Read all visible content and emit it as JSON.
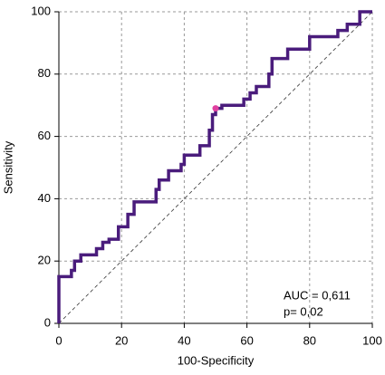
{
  "chart_data": {
    "type": "line",
    "xlabel": "100-Specificity",
    "ylabel": "Sensitivity",
    "xlim": [
      0,
      100
    ],
    "ylim": [
      0,
      100
    ],
    "xticks": [
      0,
      20,
      40,
      60,
      80,
      100
    ],
    "yticks": [
      0,
      20,
      40,
      60,
      80,
      100
    ],
    "grid": true,
    "series": [
      {
        "color": "#4a1c7c",
        "x": [
          0,
          0,
          4,
          4,
          5,
          5,
          7,
          7,
          12,
          12,
          14,
          14,
          16,
          16,
          19,
          19,
          22,
          22,
          24,
          24,
          31,
          31,
          32,
          32,
          35,
          35,
          39,
          39,
          40,
          40,
          45,
          45,
          48,
          48,
          49,
          49,
          50,
          50,
          52,
          52,
          59,
          59,
          61,
          61,
          63,
          63,
          67,
          67,
          68,
          68,
          73,
          73,
          80,
          80,
          89,
          89,
          92,
          92,
          96,
          96,
          100
        ],
        "values": [
          0,
          15,
          15,
          17,
          17,
          20,
          20,
          22,
          22,
          24,
          24,
          26,
          26,
          27,
          27,
          31,
          31,
          35,
          35,
          39,
          39,
          43,
          43,
          46,
          46,
          49,
          49,
          51,
          51,
          54,
          54,
          57,
          57,
          62,
          62,
          67,
          67,
          69,
          69,
          70,
          70,
          72,
          72,
          74,
          74,
          76,
          76,
          80,
          80,
          85,
          85,
          88,
          88,
          92,
          92,
          94,
          94,
          96,
          96,
          100,
          100
        ]
      }
    ],
    "marker": {
      "x": 50,
      "y": 69,
      "color": "#e040a0"
    },
    "annotations": [
      "AUC = 0,611",
      "p= 0,02"
    ]
  }
}
